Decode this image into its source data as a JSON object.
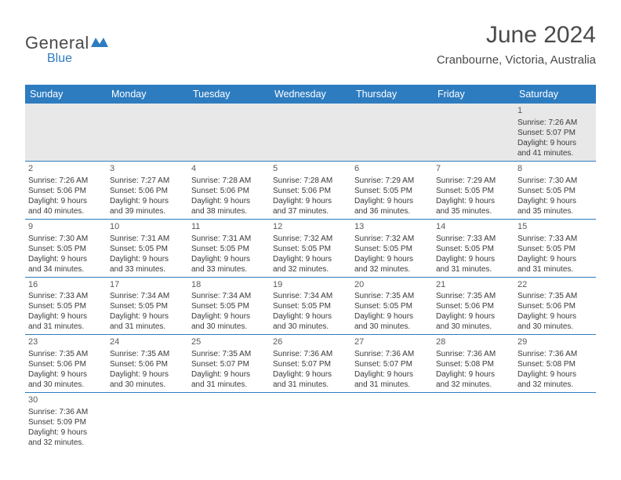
{
  "logo": {
    "text_general": "General",
    "text_blue": "Blue",
    "icon_color": "#2e7cc0"
  },
  "header": {
    "title": "June 2024",
    "location": "Cranbourne, Victoria, Australia"
  },
  "colors": {
    "header_bg": "#2e7cc0",
    "header_text": "#ffffff",
    "row_border": "#2e7cc0",
    "first_row_bg": "#e8e8e8",
    "text": "#3a3a3a",
    "title_text": "#4a4a4a"
  },
  "calendar": {
    "day_names": [
      "Sunday",
      "Monday",
      "Tuesday",
      "Wednesday",
      "Thursday",
      "Friday",
      "Saturday"
    ],
    "weeks": [
      [
        null,
        null,
        null,
        null,
        null,
        null,
        {
          "n": "1",
          "sunrise": "Sunrise: 7:26 AM",
          "sunset": "Sunset: 5:07 PM",
          "daylight1": "Daylight: 9 hours",
          "daylight2": "and 41 minutes."
        }
      ],
      [
        {
          "n": "2",
          "sunrise": "Sunrise: 7:26 AM",
          "sunset": "Sunset: 5:06 PM",
          "daylight1": "Daylight: 9 hours",
          "daylight2": "and 40 minutes."
        },
        {
          "n": "3",
          "sunrise": "Sunrise: 7:27 AM",
          "sunset": "Sunset: 5:06 PM",
          "daylight1": "Daylight: 9 hours",
          "daylight2": "and 39 minutes."
        },
        {
          "n": "4",
          "sunrise": "Sunrise: 7:28 AM",
          "sunset": "Sunset: 5:06 PM",
          "daylight1": "Daylight: 9 hours",
          "daylight2": "and 38 minutes."
        },
        {
          "n": "5",
          "sunrise": "Sunrise: 7:28 AM",
          "sunset": "Sunset: 5:06 PM",
          "daylight1": "Daylight: 9 hours",
          "daylight2": "and 37 minutes."
        },
        {
          "n": "6",
          "sunrise": "Sunrise: 7:29 AM",
          "sunset": "Sunset: 5:05 PM",
          "daylight1": "Daylight: 9 hours",
          "daylight2": "and 36 minutes."
        },
        {
          "n": "7",
          "sunrise": "Sunrise: 7:29 AM",
          "sunset": "Sunset: 5:05 PM",
          "daylight1": "Daylight: 9 hours",
          "daylight2": "and 35 minutes."
        },
        {
          "n": "8",
          "sunrise": "Sunrise: 7:30 AM",
          "sunset": "Sunset: 5:05 PM",
          "daylight1": "Daylight: 9 hours",
          "daylight2": "and 35 minutes."
        }
      ],
      [
        {
          "n": "9",
          "sunrise": "Sunrise: 7:30 AM",
          "sunset": "Sunset: 5:05 PM",
          "daylight1": "Daylight: 9 hours",
          "daylight2": "and 34 minutes."
        },
        {
          "n": "10",
          "sunrise": "Sunrise: 7:31 AM",
          "sunset": "Sunset: 5:05 PM",
          "daylight1": "Daylight: 9 hours",
          "daylight2": "and 33 minutes."
        },
        {
          "n": "11",
          "sunrise": "Sunrise: 7:31 AM",
          "sunset": "Sunset: 5:05 PM",
          "daylight1": "Daylight: 9 hours",
          "daylight2": "and 33 minutes."
        },
        {
          "n": "12",
          "sunrise": "Sunrise: 7:32 AM",
          "sunset": "Sunset: 5:05 PM",
          "daylight1": "Daylight: 9 hours",
          "daylight2": "and 32 minutes."
        },
        {
          "n": "13",
          "sunrise": "Sunrise: 7:32 AM",
          "sunset": "Sunset: 5:05 PM",
          "daylight1": "Daylight: 9 hours",
          "daylight2": "and 32 minutes."
        },
        {
          "n": "14",
          "sunrise": "Sunrise: 7:33 AM",
          "sunset": "Sunset: 5:05 PM",
          "daylight1": "Daylight: 9 hours",
          "daylight2": "and 31 minutes."
        },
        {
          "n": "15",
          "sunrise": "Sunrise: 7:33 AM",
          "sunset": "Sunset: 5:05 PM",
          "daylight1": "Daylight: 9 hours",
          "daylight2": "and 31 minutes."
        }
      ],
      [
        {
          "n": "16",
          "sunrise": "Sunrise: 7:33 AM",
          "sunset": "Sunset: 5:05 PM",
          "daylight1": "Daylight: 9 hours",
          "daylight2": "and 31 minutes."
        },
        {
          "n": "17",
          "sunrise": "Sunrise: 7:34 AM",
          "sunset": "Sunset: 5:05 PM",
          "daylight1": "Daylight: 9 hours",
          "daylight2": "and 31 minutes."
        },
        {
          "n": "18",
          "sunrise": "Sunrise: 7:34 AM",
          "sunset": "Sunset: 5:05 PM",
          "daylight1": "Daylight: 9 hours",
          "daylight2": "and 30 minutes."
        },
        {
          "n": "19",
          "sunrise": "Sunrise: 7:34 AM",
          "sunset": "Sunset: 5:05 PM",
          "daylight1": "Daylight: 9 hours",
          "daylight2": "and 30 minutes."
        },
        {
          "n": "20",
          "sunrise": "Sunrise: 7:35 AM",
          "sunset": "Sunset: 5:05 PM",
          "daylight1": "Daylight: 9 hours",
          "daylight2": "and 30 minutes."
        },
        {
          "n": "21",
          "sunrise": "Sunrise: 7:35 AM",
          "sunset": "Sunset: 5:06 PM",
          "daylight1": "Daylight: 9 hours",
          "daylight2": "and 30 minutes."
        },
        {
          "n": "22",
          "sunrise": "Sunrise: 7:35 AM",
          "sunset": "Sunset: 5:06 PM",
          "daylight1": "Daylight: 9 hours",
          "daylight2": "and 30 minutes."
        }
      ],
      [
        {
          "n": "23",
          "sunrise": "Sunrise: 7:35 AM",
          "sunset": "Sunset: 5:06 PM",
          "daylight1": "Daylight: 9 hours",
          "daylight2": "and 30 minutes."
        },
        {
          "n": "24",
          "sunrise": "Sunrise: 7:35 AM",
          "sunset": "Sunset: 5:06 PM",
          "daylight1": "Daylight: 9 hours",
          "daylight2": "and 30 minutes."
        },
        {
          "n": "25",
          "sunrise": "Sunrise: 7:35 AM",
          "sunset": "Sunset: 5:07 PM",
          "daylight1": "Daylight: 9 hours",
          "daylight2": "and 31 minutes."
        },
        {
          "n": "26",
          "sunrise": "Sunrise: 7:36 AM",
          "sunset": "Sunset: 5:07 PM",
          "daylight1": "Daylight: 9 hours",
          "daylight2": "and 31 minutes."
        },
        {
          "n": "27",
          "sunrise": "Sunrise: 7:36 AM",
          "sunset": "Sunset: 5:07 PM",
          "daylight1": "Daylight: 9 hours",
          "daylight2": "and 31 minutes."
        },
        {
          "n": "28",
          "sunrise": "Sunrise: 7:36 AM",
          "sunset": "Sunset: 5:08 PM",
          "daylight1": "Daylight: 9 hours",
          "daylight2": "and 32 minutes."
        },
        {
          "n": "29",
          "sunrise": "Sunrise: 7:36 AM",
          "sunset": "Sunset: 5:08 PM",
          "daylight1": "Daylight: 9 hours",
          "daylight2": "and 32 minutes."
        }
      ],
      [
        {
          "n": "30",
          "sunrise": "Sunrise: 7:36 AM",
          "sunset": "Sunset: 5:09 PM",
          "daylight1": "Daylight: 9 hours",
          "daylight2": "and 32 minutes."
        },
        null,
        null,
        null,
        null,
        null,
        null
      ]
    ]
  }
}
